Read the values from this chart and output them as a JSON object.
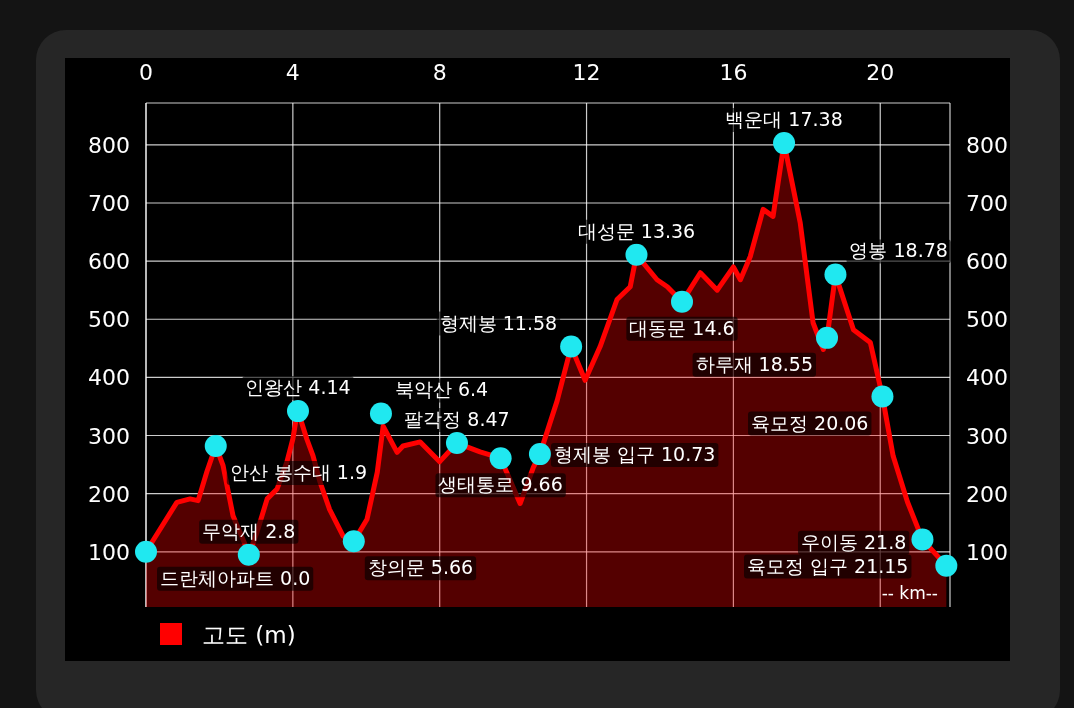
{
  "chart_data": {
    "type": "area",
    "xlim": [
      0,
      21.9
    ],
    "xticks": [
      0,
      4,
      8,
      12,
      16,
      20
    ],
    "ylim": [
      5,
      872
    ],
    "yticks": [
      100,
      200,
      300,
      400,
      500,
      600,
      700,
      800
    ],
    "y2lim": [
      5,
      872
    ],
    "y2ticks": [
      100,
      200,
      300,
      400,
      500,
      600,
      700,
      800
    ],
    "grid": true,
    "legend": "bottom left",
    "series": [
      {
        "name": "고도 (m)",
        "color": "#ff0000",
        "x": [
          0,
          0.84,
          1.2,
          1.42,
          1.66,
          1.9,
          2.1,
          2.37,
          2.75,
          2.8,
          3.02,
          3.3,
          3.57,
          3.84,
          4.0,
          4.08,
          4.14,
          4.38,
          4.55,
          4.74,
          5.0,
          5.37,
          5.66,
          6.02,
          6.3,
          6.46,
          6.84,
          7.0,
          7.47,
          8.0,
          8.47,
          9.1,
          9.66,
          10.19,
          10.55,
          10.73,
          11.2,
          11.58,
          11.96,
          12.37,
          12.83,
          13.19,
          13.36,
          13.92,
          14.2,
          14.6,
          15.1,
          15.56,
          16.0,
          16.19,
          16.46,
          16.81,
          17.08,
          17.38,
          17.82,
          18.17,
          18.45,
          18.55,
          18.78,
          19.27,
          19.73,
          20.06,
          20.35,
          20.74,
          21.15,
          21.8
        ],
        "values": [
          100,
          185,
          191,
          188,
          238,
          282,
          248,
          162,
          105,
          95,
          133,
          191,
          208,
          255,
          294,
          325,
          342,
          294,
          265,
          220,
          173,
          127,
          118,
          156,
          237,
          316,
          271,
          282,
          289,
          255,
          287,
          272,
          261,
          183,
          245,
          268,
          360,
          453,
          395,
          453,
          534,
          556,
          611,
          568,
          556,
          530,
          580,
          550,
          590,
          568,
          608,
          689,
          677,
          803,
          666,
          494,
          448,
          468,
          577,
          482,
          460,
          367,
          265,
          186,
          121,
          76
        ]
      },
      {
        "type": "scatter",
        "marker": "circle",
        "color": "#20e8f0",
        "x": [
          0,
          1.9,
          2.8,
          4.14,
          5.66,
          6.4,
          8.47,
          9.66,
          10.73,
          11.58,
          13.36,
          14.6,
          17.38,
          18.55,
          18.78,
          20.06,
          21.15,
          21.8
        ],
        "values": [
          100,
          282,
          95,
          342,
          118,
          338,
          287,
          261,
          268,
          453,
          611,
          530,
          803,
          468,
          577,
          367,
          121,
          76
        ]
      }
    ],
    "annotations": [
      {
        "text": "드란체아파트 0.0",
        "x": 0,
        "y": 100
      },
      {
        "text": "안산 봉수대 1.9",
        "x": 1.9,
        "y": 282
      },
      {
        "text": "무악재 2.8",
        "x": 2.8,
        "y": 95
      },
      {
        "text": "인왕산 4.14",
        "x": 4.14,
        "y": 342
      },
      {
        "text": "창의문 5.66",
        "x": 5.66,
        "y": 118
      },
      {
        "text": "북악산 6.4",
        "x": 6.4,
        "y": 338
      },
      {
        "text": "팔각정 8.47",
        "x": 8.47,
        "y": 287
      },
      {
        "text": "생태통로 9.66",
        "x": 9.66,
        "y": 261
      },
      {
        "text": "형제봉 입구 10.73",
        "x": 10.73,
        "y": 268
      },
      {
        "text": "형제봉 11.58",
        "x": 11.58,
        "y": 453
      },
      {
        "text": "대성문 13.36",
        "x": 13.36,
        "y": 611
      },
      {
        "text": "대동문 14.6",
        "x": 14.6,
        "y": 530
      },
      {
        "text": "백운대 17.38",
        "x": 17.38,
        "y": 803
      },
      {
        "text": "하루재 18.55",
        "x": 18.55,
        "y": 468
      },
      {
        "text": "영봉 18.78",
        "x": 18.78,
        "y": 577
      },
      {
        "text": "육모정 20.06",
        "x": 20.06,
        "y": 367
      },
      {
        "text": "육모정 입구 21.15",
        "x": 21.15,
        "y": 121
      },
      {
        "text": "우이동 21.8",
        "x": 21.8,
        "y": 76
      },
      "-- km--"
    ]
  }
}
